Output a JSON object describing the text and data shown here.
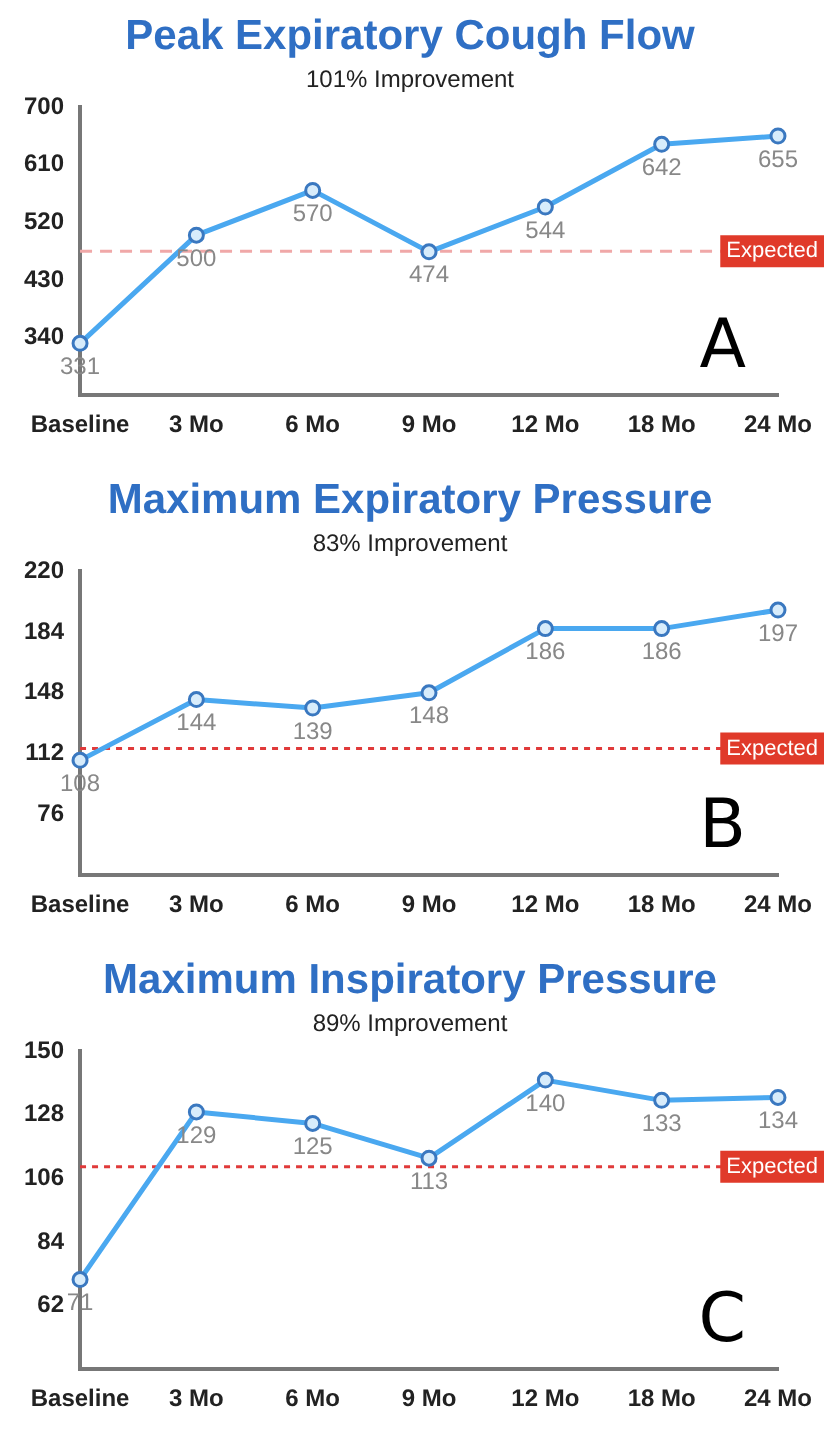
{
  "chart_data": [
    {
      "type": "line",
      "title": "Peak Expiratory Cough Flow",
      "subtitle": "101% Improvement",
      "categories": [
        "Baseline",
        "3 Mo",
        "6 Mo",
        "9 Mo",
        "12 Mo",
        "18 Mo",
        "24 Mo"
      ],
      "series": [
        {
          "color": "#4aa8f0",
          "values": [
            331,
            500,
            570,
            474,
            544,
            642,
            655
          ]
        }
      ],
      "ylim": [
        250,
        700
      ],
      "yticks": [
        340,
        430,
        520,
        610,
        700
      ],
      "data_labels": true,
      "marker": "circle",
      "line_style": "solid",
      "ref_lines": [
        {
          "axis": "y",
          "value": 475,
          "label": "Expected",
          "color": "#f0a8a8",
          "line_style": "dashed"
        }
      ],
      "annotations": [
        "A"
      ]
    },
    {
      "type": "line",
      "title": "Maximum Expiratory Pressure",
      "subtitle": "83% Improvement",
      "categories": [
        "Baseline",
        "3 Mo",
        "6 Mo",
        "9 Mo",
        "12 Mo",
        "18 Mo",
        "24 Mo"
      ],
      "series": [
        {
          "color": "#4aa8f0",
          "values": [
            108,
            144,
            139,
            148,
            186,
            186,
            197
          ]
        }
      ],
      "ylim": [
        40,
        220
      ],
      "yticks": [
        76,
        112,
        148,
        184,
        220
      ],
      "data_labels": true,
      "marker": "circle",
      "line_style": "solid",
      "ref_lines": [
        {
          "axis": "y",
          "value": 115,
          "label": "Expected",
          "color": "#e03a3a",
          "line_style": "dotted"
        }
      ],
      "annotations": [
        "B"
      ]
    },
    {
      "type": "line",
      "title": "Maximum Inspiratory Pressure",
      "subtitle": "89% Improvement",
      "categories": [
        "Baseline",
        "3 Mo",
        "6 Mo",
        "9 Mo",
        "12 Mo",
        "18 Mo",
        "24 Mo"
      ],
      "series": [
        {
          "color": "#4aa8f0",
          "values": [
            71,
            129,
            125,
            113,
            140,
            133,
            134
          ]
        }
      ],
      "ylim": [
        40,
        150
      ],
      "yticks": [
        62,
        84,
        106,
        128,
        150
      ],
      "data_labels": true,
      "marker": "circle",
      "line_style": "solid",
      "ref_lines": [
        {
          "axis": "y",
          "value": 110,
          "label": "Expected",
          "color": "#e03a3a",
          "line_style": "dotted"
        }
      ],
      "annotations": [
        "C"
      ]
    }
  ]
}
